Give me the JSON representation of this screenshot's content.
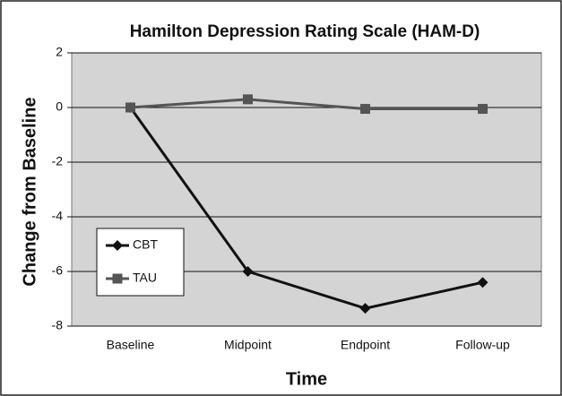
{
  "chart_data": {
    "type": "line",
    "title": "Hamilton Depression Rating Scale (HAM-D)",
    "x_label": "Time",
    "y_label": "Change from Baseline",
    "categories": [
      "Baseline",
      "Midpoint",
      "Endpoint",
      "Follow-up"
    ],
    "series": [
      {
        "name": "CBT",
        "color": "#111111",
        "marker": "diamond",
        "values": [
          0,
          -6,
          -7.35,
          -6.4
        ]
      },
      {
        "name": "TAU",
        "color": "#555555",
        "marker": "square",
        "values": [
          0,
          0.3,
          -0.05,
          -0.05
        ]
      }
    ],
    "ylim": [
      -8,
      2
    ],
    "yticks": [
      -8,
      -6,
      -4,
      -2,
      0,
      2
    ],
    "grid": true,
    "legend": "lower left"
  }
}
